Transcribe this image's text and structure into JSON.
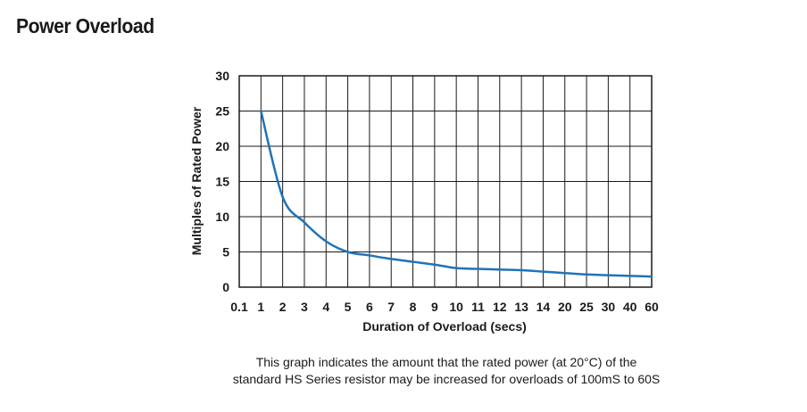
{
  "title": "Power Overload",
  "caption": {
    "line1": "This graph indicates the amount that the rated power (at 20°C) of the",
    "line2": "standard HS Series resistor may be increased for overloads of 100mS to 60S"
  },
  "chart_data": {
    "type": "line",
    "title": "Power Overload",
    "xlabel": "Duration of Overload (secs)",
    "ylabel": "Multiples of Rated Power",
    "x_tick_labels": [
      "0.1",
      "1",
      "2",
      "3",
      "4",
      "5",
      "6",
      "7",
      "8",
      "9",
      "10",
      "11",
      "12",
      "13",
      "14",
      "20",
      "25",
      "30",
      "40",
      "60"
    ],
    "y_tick_labels": [
      "0",
      "5",
      "10",
      "15",
      "20",
      "25",
      "30"
    ],
    "ylim": [
      0,
      30
    ],
    "grid": true,
    "line_color": "#1f73b7",
    "series": [
      {
        "x": [
          "1",
          "2",
          "3",
          "4",
          "5",
          "6",
          "7",
          "8",
          "9",
          "10",
          "11",
          "12",
          "13",
          "14",
          "20",
          "25",
          "30",
          "40",
          "60"
        ],
        "values": [
          25,
          12.8,
          9.2,
          6.5,
          5.0,
          4.5,
          4.0,
          3.6,
          3.2,
          2.7,
          2.6,
          2.5,
          2.4,
          2.2,
          2.0,
          1.8,
          1.7,
          1.6,
          1.5
        ]
      }
    ]
  }
}
